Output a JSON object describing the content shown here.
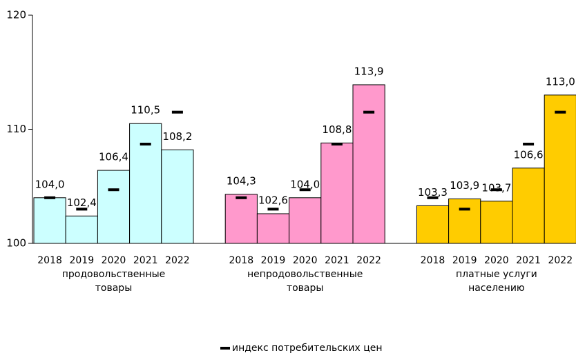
{
  "chart_data": {
    "type": "grouped-bar",
    "years": [
      "2018",
      "2019",
      "2020",
      "2021",
      "2022"
    ],
    "groups": [
      {
        "label": [
          "продовольственные",
          "товары"
        ],
        "color": "#ccffff",
        "values": [
          104.0,
          102.4,
          106.4,
          110.5,
          108.2
        ],
        "value_labels": [
          "104,0",
          "102,4",
          "106,4",
          "110,5",
          "108,2"
        ]
      },
      {
        "label": [
          "непродовольственные",
          "товары"
        ],
        "color": "#ff99cc",
        "values": [
          104.3,
          102.6,
          104.0,
          108.8,
          113.9
        ],
        "value_labels": [
          "104,3",
          "102,6",
          "104,0",
          "108,8",
          "113,9"
        ]
      },
      {
        "label": [
          "платные услуги",
          "населению"
        ],
        "color": "#ffcc00",
        "values": [
          103.3,
          103.9,
          103.7,
          106.6,
          113.0
        ],
        "value_labels": [
          "103,3",
          "103,9",
          "103,7",
          "106,6",
          "113,0"
        ]
      }
    ],
    "series": [
      {
        "name": "индекс потребительских цен",
        "color": "#000000",
        "values": [
          104.0,
          103.0,
          104.7,
          108.7,
          111.5
        ]
      }
    ],
    "ylim": [
      100,
      120
    ],
    "yticks": [
      100,
      110,
      120
    ],
    "legend": "bottom"
  }
}
